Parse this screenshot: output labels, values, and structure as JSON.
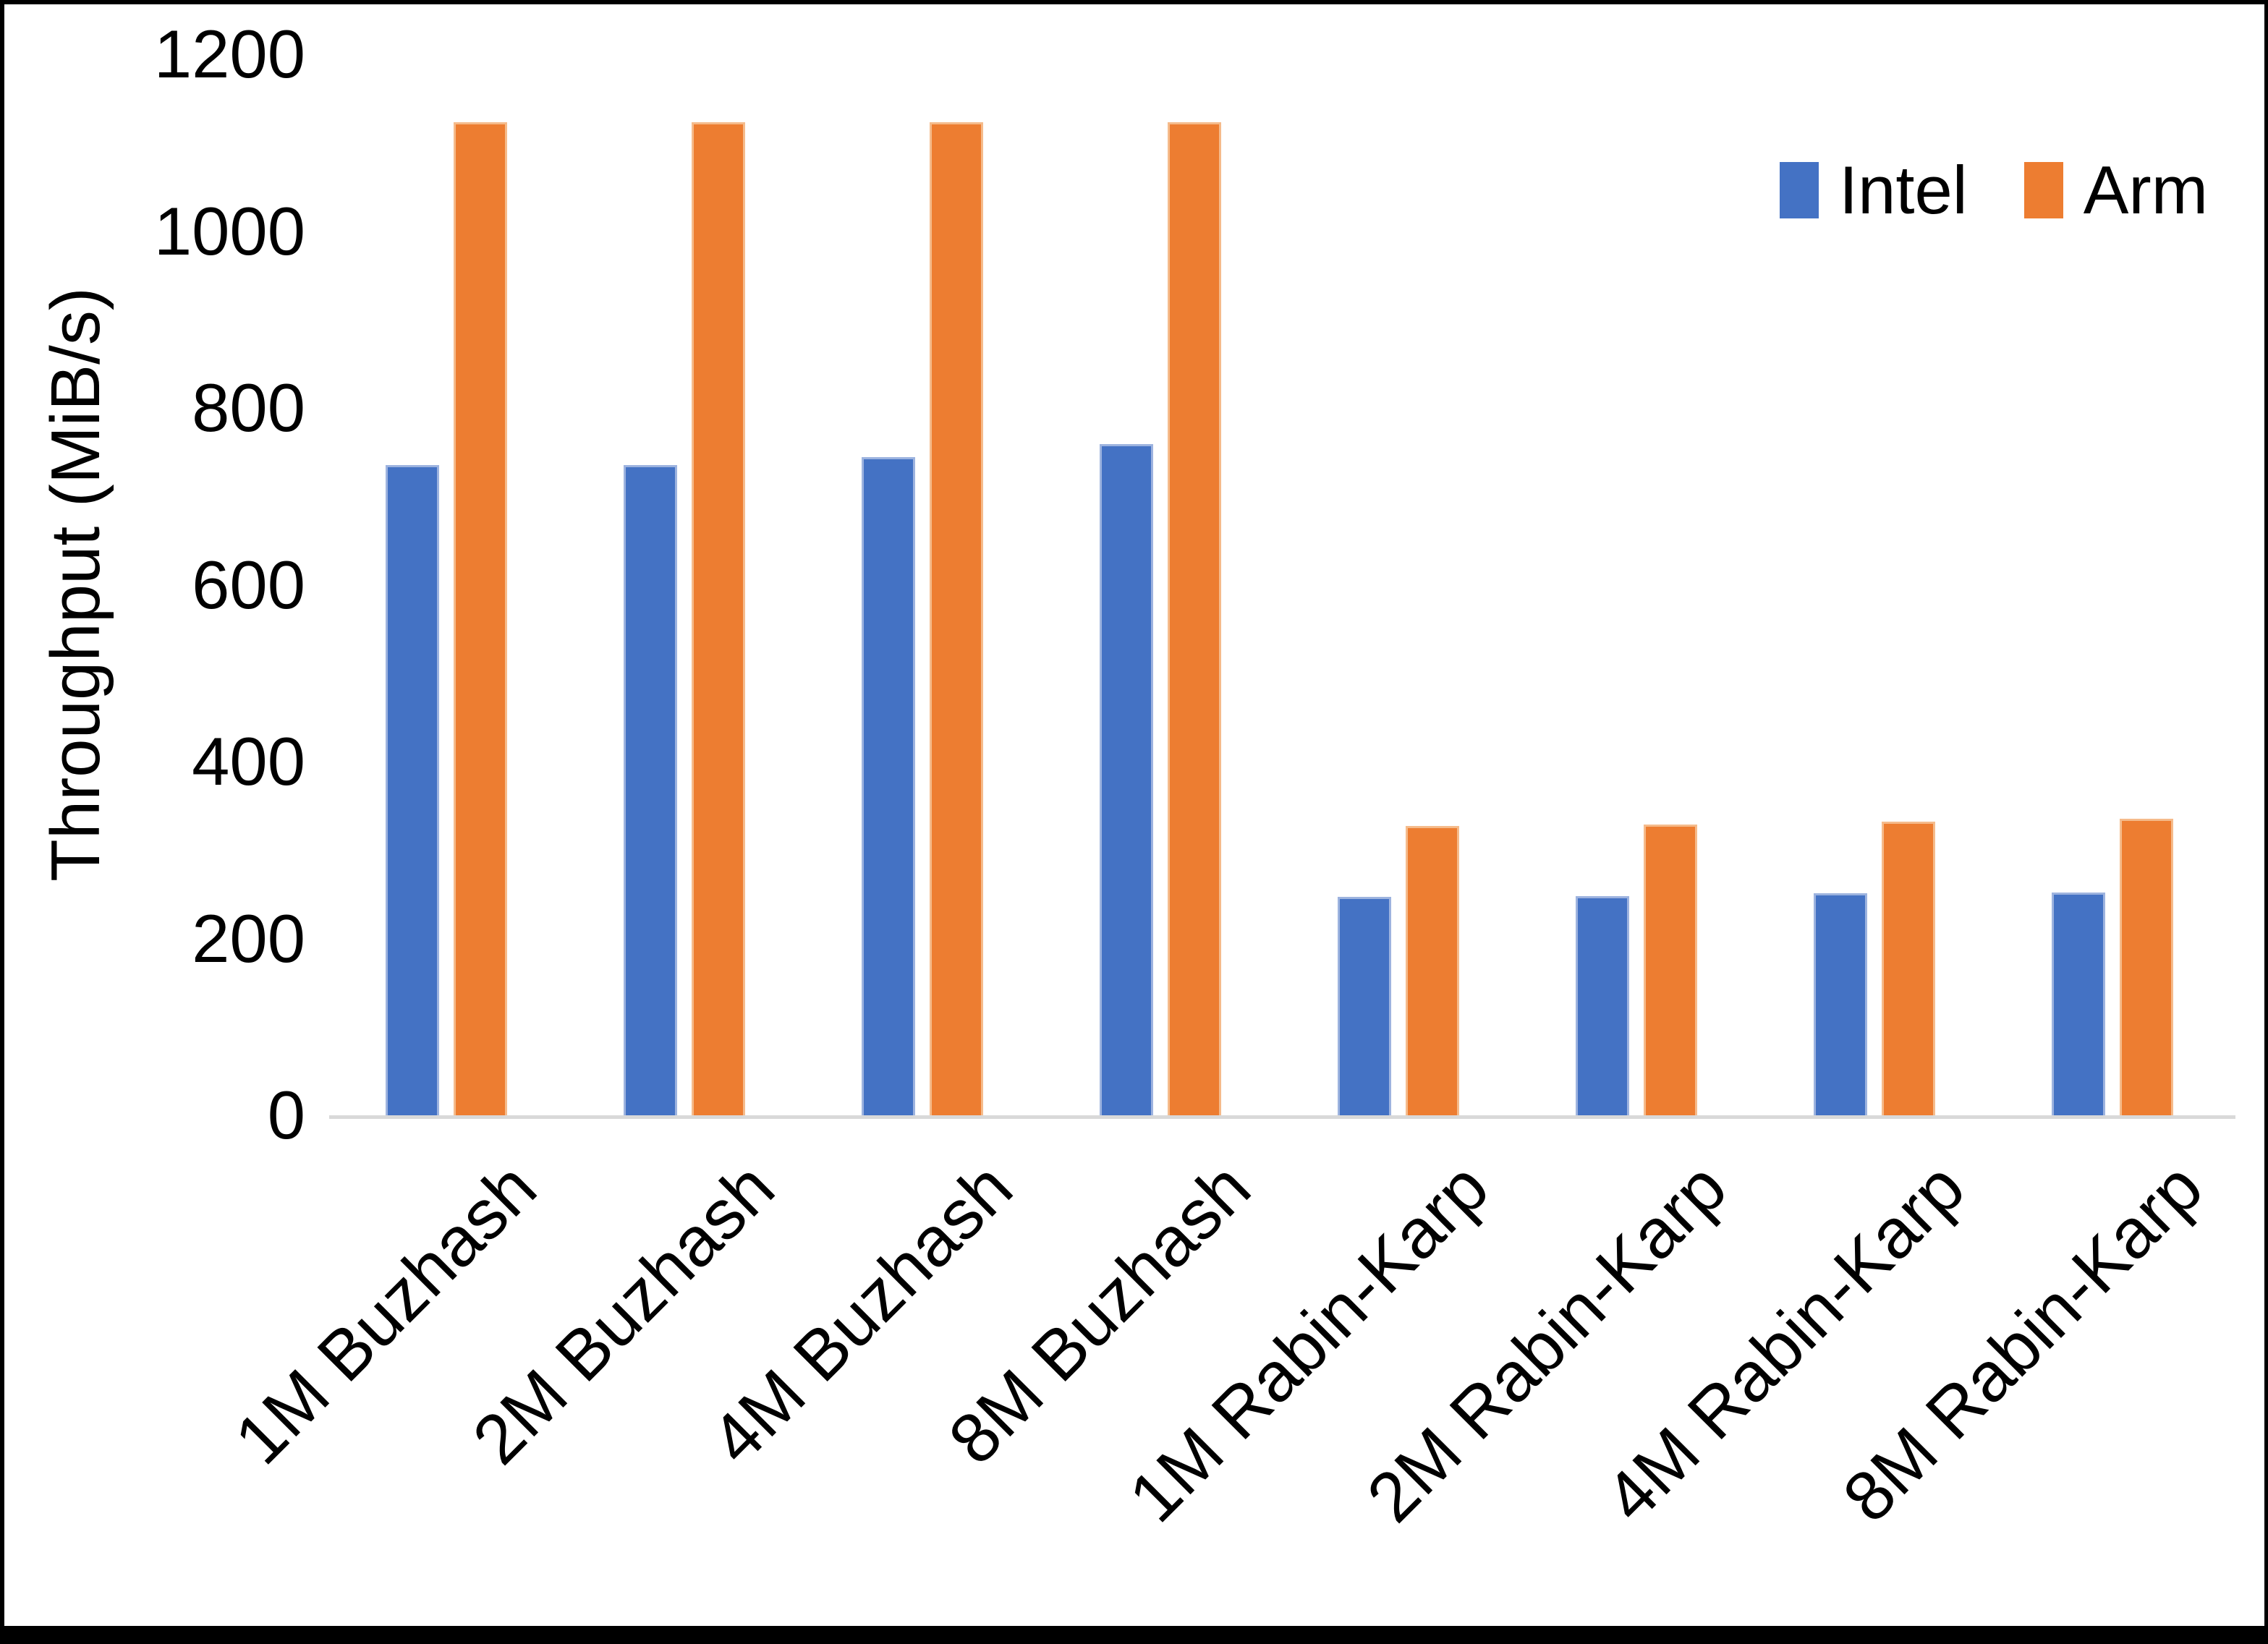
{
  "page": {
    "background": "#ffffff",
    "frame_color": "#000000"
  },
  "chart_data": {
    "type": "bar",
    "title": "",
    "ylabel": "Throughput (MiB/s)",
    "xlabel": "",
    "ylim": [
      0,
      1200
    ],
    "yticks": [
      0,
      200,
      400,
      600,
      800,
      1000,
      1200
    ],
    "grid": false,
    "legend_position": "top-right",
    "axis_line_color": "#D9D9D9",
    "text_color": "#000000",
    "categories": [
      "1M Buzhash",
      "2M Buzhash",
      "4M Buzhash",
      "8M Buzhash",
      "1M Rabin-Karp",
      "2M Rabin-Karp",
      "4M Rabin-Karp",
      "8M Rabin-Karp"
    ],
    "series": [
      {
        "name": "Intel",
        "color": "#4472C4",
        "edge_color": "#9DB3DF",
        "values": [
          735,
          735,
          744,
          759,
          247,
          248,
          251,
          252
        ]
      },
      {
        "name": "Arm",
        "color": "#ED7D31",
        "edge_color": "#F5BB8B",
        "values": [
          1123,
          1123,
          1123,
          1123,
          327,
          329,
          332,
          335
        ]
      }
    ]
  }
}
